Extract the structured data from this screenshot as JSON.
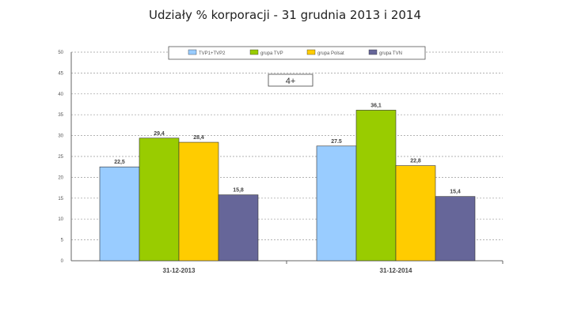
{
  "chart_data": {
    "type": "bar",
    "title": "Udziały % korporacji - 31 grudnia 2013 i 2014",
    "annotation": "4+",
    "categories": [
      "31-12-2013",
      "31-12-2014"
    ],
    "series": [
      {
        "name": "TVP1+TVP2",
        "values": [
          22.5,
          27.5
        ],
        "labels": [
          "22,5",
          "27.5"
        ],
        "color": "#99ccff"
      },
      {
        "name": "grupa TVP",
        "values": [
          29.4,
          36.1
        ],
        "labels": [
          "29,4",
          "36,1"
        ],
        "color": "#99cc00"
      },
      {
        "name": "grupa Polsat",
        "values": [
          28.4,
          22.8
        ],
        "labels": [
          "28,4",
          "22,8"
        ],
        "color": "#ffcc00"
      },
      {
        "name": "grupa TVN",
        "values": [
          15.8,
          15.4
        ],
        "labels": [
          "15,8",
          "15,4"
        ],
        "color": "#666699"
      }
    ],
    "ylim": [
      0,
      50
    ],
    "yticks": [
      0,
      5,
      10,
      15,
      20,
      25,
      30,
      35,
      40,
      45,
      50
    ],
    "xlabel": "",
    "ylabel": "",
    "grid": true,
    "legend": "top"
  }
}
